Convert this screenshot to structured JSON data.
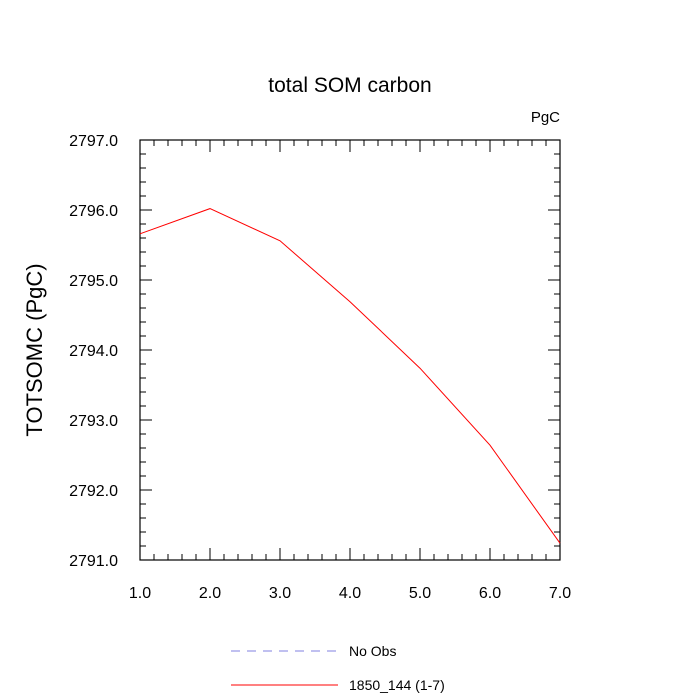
{
  "chart_data": {
    "type": "line",
    "title": "total SOM carbon",
    "units_label": "PgC",
    "xlabel": "",
    "ylabel": "TOTSOMC  (PgC)",
    "xlim": [
      1.0,
      7.0
    ],
    "ylim": [
      2791.0,
      2797.0
    ],
    "x_ticks": [
      "1.0",
      "2.0",
      "3.0",
      "4.0",
      "5.0",
      "6.0",
      "7.0"
    ],
    "y_ticks": [
      "2791.0",
      "2792.0",
      "2793.0",
      "2794.0",
      "2795.0",
      "2796.0",
      "2797.0"
    ],
    "grid": false,
    "legend_position": "bottom",
    "legend": [
      {
        "label": "No Obs",
        "color": "#8080e0",
        "style": "dashed"
      },
      {
        "label": "1850_144 (1-7)",
        "color": "#ff0000",
        "style": "solid"
      }
    ],
    "series": [
      {
        "name": "1850_144 (1-7)",
        "color": "#ff0000",
        "x": [
          1,
          2,
          3,
          4,
          5,
          6,
          7
        ],
        "values": [
          2795.66,
          2796.02,
          2795.56,
          2794.69,
          2793.74,
          2792.64,
          2791.24
        ]
      }
    ]
  }
}
